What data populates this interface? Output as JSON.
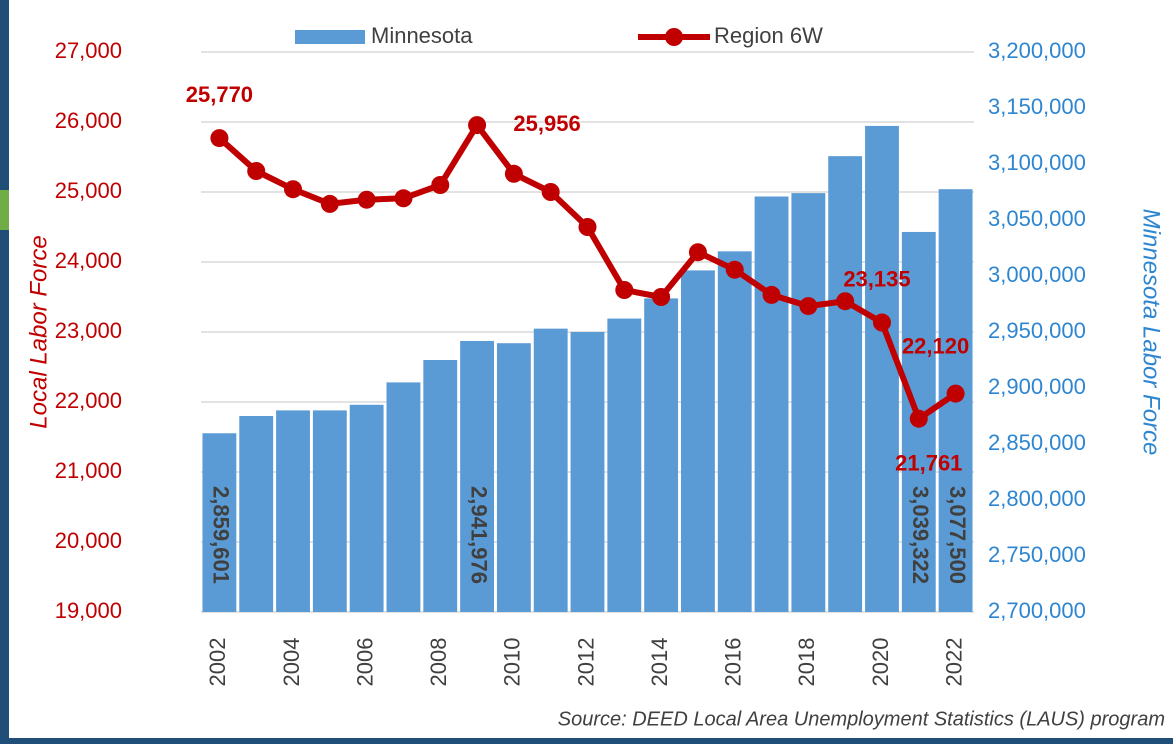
{
  "chart_data": {
    "type": "bar-line",
    "categories": [
      "2002",
      "2003",
      "2004",
      "2005",
      "2006",
      "2007",
      "2008",
      "2009",
      "2010",
      "2011",
      "2012",
      "2013",
      "2014",
      "2015",
      "2016",
      "2017",
      "2018",
      "2019",
      "2020",
      "2021",
      "2022"
    ],
    "xticks": [
      "2002",
      "2004",
      "2006",
      "2008",
      "2010",
      "2012",
      "2014",
      "2016",
      "2018",
      "2020",
      "2022"
    ],
    "series": [
      {
        "name": "Minnesota",
        "type": "bar",
        "axis": "y2",
        "color": "#5b9bd5",
        "values": [
          2859601,
          2875000,
          2880000,
          2880000,
          2885000,
          2905000,
          2925000,
          2941976,
          2940000,
          2953000,
          2950000,
          2962000,
          2980000,
          3005000,
          3022000,
          3071000,
          3074000,
          3107000,
          3134000,
          3039322,
          3077500
        ],
        "value_labels": [
          "2,859,601",
          null,
          null,
          null,
          null,
          null,
          null,
          "2,941,976",
          null,
          null,
          null,
          null,
          null,
          null,
          null,
          null,
          null,
          null,
          null,
          "3,039,322",
          "3,077,500"
        ]
      },
      {
        "name": "Region 6W",
        "type": "line",
        "axis": "y",
        "color": "#c00000",
        "values": [
          25770,
          25300,
          25040,
          24830,
          24890,
          24910,
          25100,
          25956,
          25260,
          25000,
          24500,
          23600,
          23500,
          24140,
          23890,
          23530,
          23370,
          23440,
          23135,
          21761,
          22120
        ],
        "value_labels": [
          "25,770",
          null,
          null,
          null,
          null,
          null,
          null,
          "25,956",
          null,
          null,
          null,
          null,
          null,
          null,
          null,
          null,
          null,
          null,
          "23,135",
          "21,761",
          "22,120"
        ]
      }
    ],
    "ylabel": "Local Labor Force",
    "y2label": "Minnesota Labor Force",
    "ylim": [
      19000,
      27000
    ],
    "yticks": [
      {
        "value": 19000,
        "label": "19,000"
      },
      {
        "value": 20000,
        "label": "20,000"
      },
      {
        "value": 21000,
        "label": "21,000"
      },
      {
        "value": 22000,
        "label": "22,000"
      },
      {
        "value": 23000,
        "label": "23,000"
      },
      {
        "value": 24000,
        "label": "24,000"
      },
      {
        "value": 25000,
        "label": "25,000"
      },
      {
        "value": 26000,
        "label": "26,000"
      },
      {
        "value": 27000,
        "label": "27,000"
      }
    ],
    "y2lim": [
      2700000,
      3200000
    ],
    "y2ticks": [
      {
        "value": 2700000,
        "label": "2,700,000"
      },
      {
        "value": 2750000,
        "label": "2,750,000"
      },
      {
        "value": 2800000,
        "label": "2,800,000"
      },
      {
        "value": 2850000,
        "label": "2,850,000"
      },
      {
        "value": 2900000,
        "label": "2,900,000"
      },
      {
        "value": 2950000,
        "label": "2,950,000"
      },
      {
        "value": 3000000,
        "label": "3,000,000"
      },
      {
        "value": 3050000,
        "label": "3,050,000"
      },
      {
        "value": 3100000,
        "label": "3,100,000"
      },
      {
        "value": 3150000,
        "label": "3,150,000"
      },
      {
        "value": 3200000,
        "label": "3,200,000"
      }
    ],
    "grid": true,
    "legend": "top",
    "source": "Source: DEED Local Area Unemployment Statistics (LAUS) program"
  }
}
